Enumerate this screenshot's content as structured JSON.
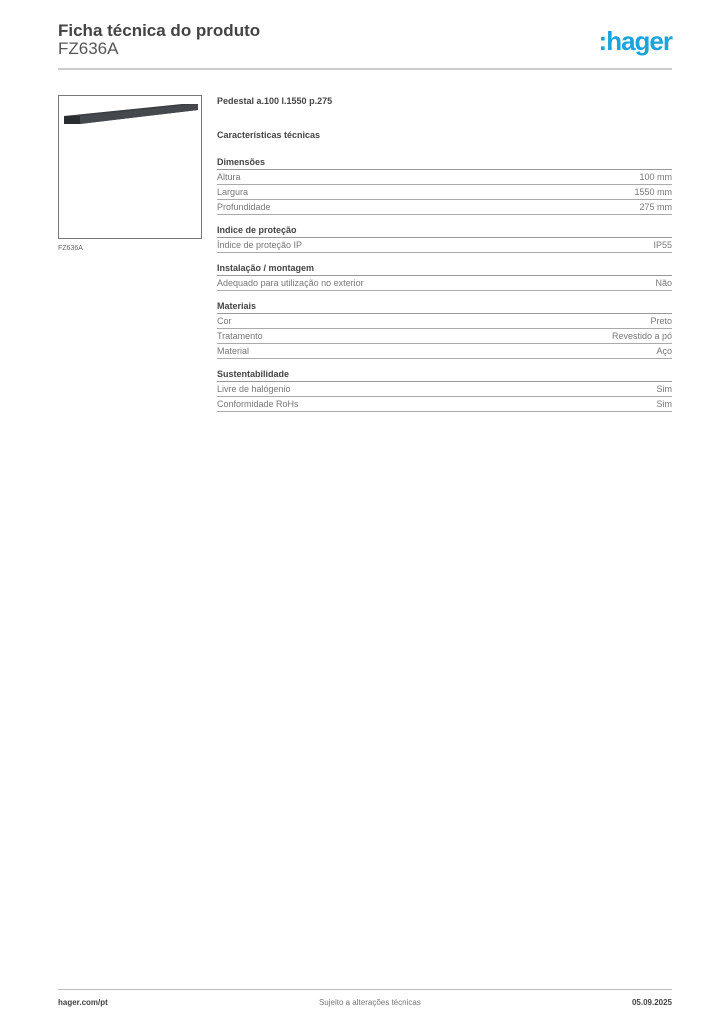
{
  "header": {
    "title": "Ficha técnica do produto",
    "code": "FZ636A",
    "logo": ":hager",
    "brand_color": "#1aa3dc"
  },
  "image": {
    "caption": "FZ636A",
    "alt": "pedestal-image"
  },
  "product": {
    "name": "Pedestal a.100 l.1550 p.275",
    "section_title": "Características técnicas"
  },
  "sections": [
    {
      "title": "Dimensões",
      "rows": [
        {
          "label": "Altura",
          "value": "100 mm"
        },
        {
          "label": "Largura",
          "value": "1550 mm"
        },
        {
          "label": "Profundidade",
          "value": "275 mm"
        }
      ]
    },
    {
      "title": "Indice de proteção",
      "rows": [
        {
          "label": "Índice de proteção IP",
          "value": "IP55"
        }
      ]
    },
    {
      "title": "Instalação / montagem",
      "rows": [
        {
          "label": "Adequado para utilização no exterior",
          "value": "Não"
        }
      ]
    },
    {
      "title": "Materiais",
      "rows": [
        {
          "label": "Cor",
          "value": "Preto"
        },
        {
          "label": "Tratamento",
          "value": "Revestido a pó"
        },
        {
          "label": "Material",
          "value": "Aço"
        }
      ]
    },
    {
      "title": "Sustentabilidade",
      "rows": [
        {
          "label": "Livre de halógenio",
          "value": "Sim"
        },
        {
          "label": "Conformidade RoHs",
          "value": "Sim"
        }
      ]
    }
  ],
  "footer": {
    "website": "hager.com/pt",
    "note": "Sujeito a alterações técnicas",
    "date": "05.09.2025"
  }
}
